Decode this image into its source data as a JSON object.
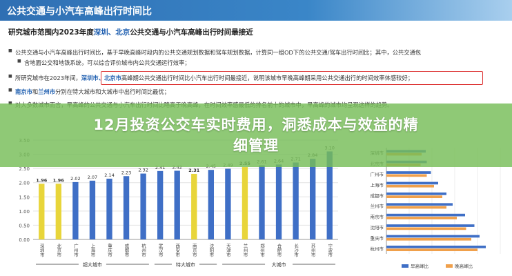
{
  "slide": {
    "title": "公共交通与小汽车高峰出行时间比",
    "subhead_prefix": "研究城市范围内2023年度",
    "subhead_cities": "深圳、北京",
    "subhead_suffix": "公共交通与小汽车高峰出行时间最接近",
    "bullets": [
      {
        "text": "公共交通与小汽车高峰出行时间比，基于早晚高峰时段内的公共交通规划数据和驾车规划数据，计算同一组OD下的公共交通/驾车出行时间比；其中，公共交通包"
      },
      {
        "text": "含地面公交和地铁系统，可以综合评价城市内公共交通运行效率；"
      },
      {
        "pre": "所研究城市在2023年间，",
        "hl": "深圳市、北京市",
        "post": "高峰期公共交通出行时间比小汽车出行时间最接近，说明该城市早晚高峰期采用公共交通出行的时间效率体感较好；"
      },
      {
        "hl": "南京市",
        "mid": "和",
        "hl2": "兰州市",
        "post": "分别在特大城市和大城市中出行时间比最优；"
      },
      {
        "text": "对大多数城市而言，早高峰的公共交通与小汽车出行时间比略高于晚高峰，在时间效率感最低的排名前十的城市中，早高峰的城市均呈现这样的趋势。"
      }
    ]
  },
  "headline": {
    "line1": "12月投资公交车实时费用，洞悉成本与效益的精",
    "line2": "细管理"
  },
  "colors": {
    "header_blue": "#2f6fb3",
    "banner_green": "#76bd58",
    "bar_yellow": "#e8d53a",
    "bar_blue": "#3f6fc6",
    "morning_blue": "#3f6fc6",
    "evening_orange": "#f0a04b",
    "highlight_red": "#d33333"
  },
  "chart_data": [
    {
      "type": "bar",
      "ylim": [
        0,
        3.5
      ],
      "yticks": [
        "0.00",
        "0.50",
        "1.00",
        "1.50",
        "2.00",
        "2.50",
        "3.00",
        "3.50"
      ],
      "categories": [
        "深圳市",
        "北京市",
        "广州市",
        "上海市",
        "重庆市",
        "成都市",
        "杭州市",
        "武汉市",
        "西安市",
        "南京市",
        "沈阳市",
        "天津市",
        "兰州市",
        "郑州市",
        "合肥市",
        "长沙市",
        "苏州市",
        "宁波市"
      ],
      "values": [
        1.96,
        1.96,
        2.02,
        2.07,
        2.14,
        2.23,
        2.32,
        2.41,
        2.42,
        2.31,
        2.45,
        2.49,
        2.55,
        2.61,
        2.64,
        2.71,
        2.84,
        3.1
      ],
      "value_labels": [
        "1.96",
        "1.96",
        "2.02",
        "2.07",
        "2.14",
        "2.23",
        "2.32",
        "2.41",
        "2.42",
        "2.31",
        "2.45",
        "2.49",
        "2.55",
        "2.61",
        "2.64",
        "2.71",
        "2.84",
        "3.10"
      ],
      "highlight": [
        0,
        1,
        9,
        12
      ],
      "groups": [
        {
          "label": "超大城市",
          "from": 0,
          "to": 6
        },
        {
          "label": "特大城市",
          "from": 7,
          "to": 10
        },
        {
          "label": "大城市",
          "from": 11,
          "to": 17
        }
      ]
    },
    {
      "type": "bar",
      "orientation": "horizontal",
      "categories": [
        "深圳市",
        "北京市",
        "广州市",
        "上海市",
        "成都市",
        "兰州市",
        "南京市",
        "沈阳市",
        "重庆市",
        "杭州市"
      ],
      "series": [
        {
          "name": "早高峰比",
          "values": [
            1.98,
            1.99,
            2.03,
            2.1,
            2.18,
            2.24,
            2.36,
            2.45,
            2.5,
            2.56
          ]
        },
        {
          "name": "晚高峰比",
          "values": [
            1.94,
            1.93,
            1.99,
            2.06,
            2.14,
            2.18,
            2.28,
            2.37,
            2.42,
            2.48
          ]
        }
      ]
    }
  ]
}
